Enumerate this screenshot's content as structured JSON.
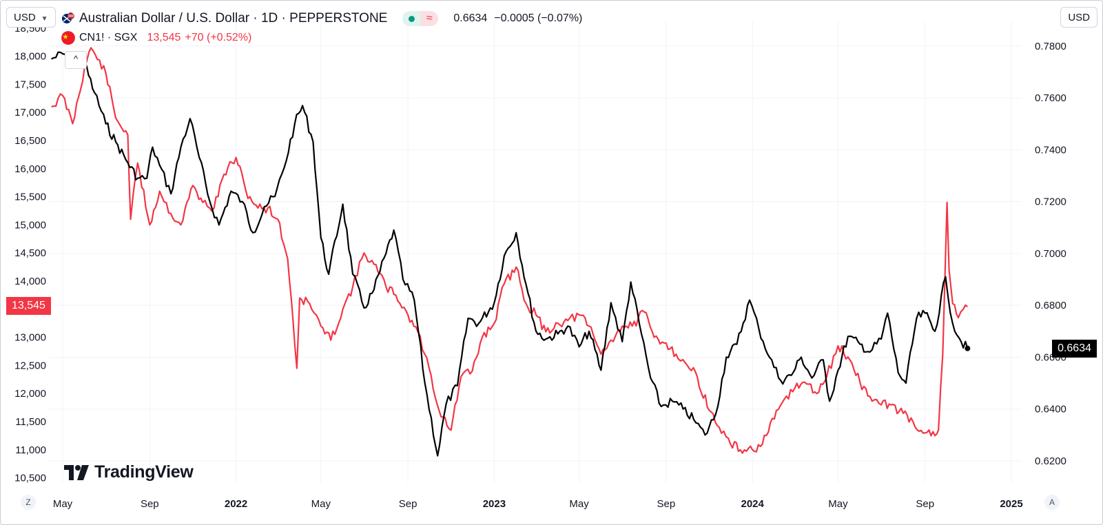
{
  "toolbar": {
    "left_currency": "USD",
    "right_currency": "USD",
    "left_currency_icon": "chevron-down-icon",
    "collapse_icon": "chevron-up-icon"
  },
  "legend": {
    "main": {
      "title": "Australian Dollar / U.S. Dollar · 1D · PEPPERSTONE",
      "value": "0.6634",
      "change": "−0.0005 (−0.07%)",
      "flag_icon": "au-us-flag-icon"
    },
    "compare": {
      "symbol": "CN1! · SGX",
      "value": "13,545",
      "change": "+70 (+0.52%)",
      "flag_icon": "china-flag-icon"
    }
  },
  "price_tags": {
    "left": "13,545",
    "right": "0.6634"
  },
  "logo": {
    "name": "TradingView"
  },
  "corner_buttons": {
    "left": "Z",
    "right": "A"
  },
  "colors": {
    "audusd": "#000000",
    "cn1": "#f23645",
    "grid": "#f0f3fa",
    "text": "#131722"
  },
  "chart_data": {
    "type": "line",
    "title": "Australian Dollar / U.S. Dollar · 1D · PEPPERSTONE",
    "x_ticks": [
      {
        "label": "May",
        "date": "2021-05-01",
        "year": false
      },
      {
        "label": "Sep",
        "date": "2021-09-01",
        "year": false
      },
      {
        "label": "2022",
        "date": "2022-01-01",
        "year": true
      },
      {
        "label": "May",
        "date": "2022-05-01",
        "year": false
      },
      {
        "label": "Sep",
        "date": "2022-09-01",
        "year": false
      },
      {
        "label": "2023",
        "date": "2023-01-01",
        "year": true
      },
      {
        "label": "May",
        "date": "2023-05-01",
        "year": false
      },
      {
        "label": "Sep",
        "date": "2023-09-01",
        "year": false
      },
      {
        "label": "2024",
        "date": "2024-01-01",
        "year": true
      },
      {
        "label": "May",
        "date": "2024-05-01",
        "year": false
      },
      {
        "label": "Sep",
        "date": "2024-09-01",
        "year": false
      },
      {
        "label": "2025",
        "date": "2025-01-01",
        "year": true
      }
    ],
    "right_axis": {
      "ylim": [
        0.6115,
        0.7895
      ],
      "ticks": [
        "0.6200",
        "0.6400",
        "0.6600",
        "0.6800",
        "0.7000",
        "0.7200",
        "0.7400",
        "0.7600",
        "0.7800"
      ]
    },
    "left_axis": {
      "ylim": [
        10410,
        18620
      ],
      "ticks": [
        "10,500",
        "11,000",
        "11,500",
        "12,000",
        "12,500",
        "13,000",
        "13,500",
        "14,000",
        "14,500",
        "15,000",
        "15,500",
        "16,000",
        "16,500",
        "17,000",
        "17,500",
        "18,000",
        "18,500"
      ]
    },
    "series": [
      {
        "name": "Australian Dollar / U.S. Dollar · 1D · PEPPERSTONE",
        "axis": "right",
        "points": [
          [
            "2021-04-15",
            0.775
          ],
          [
            "2021-05-01",
            0.777
          ],
          [
            "2021-05-15",
            0.775
          ],
          [
            "2021-06-01",
            0.773
          ],
          [
            "2021-06-15",
            0.762
          ],
          [
            "2021-07-01",
            0.75
          ],
          [
            "2021-07-15",
            0.743
          ],
          [
            "2021-08-01",
            0.735
          ],
          [
            "2021-08-15",
            0.729
          ],
          [
            "2021-08-28",
            0.729
          ],
          [
            "2021-09-05",
            0.741
          ],
          [
            "2021-09-15",
            0.734
          ],
          [
            "2021-10-01",
            0.723
          ],
          [
            "2021-10-15",
            0.741
          ],
          [
            "2021-10-28",
            0.752
          ],
          [
            "2021-11-10",
            0.737
          ],
          [
            "2021-11-25",
            0.72
          ],
          [
            "2021-12-08",
            0.711
          ],
          [
            "2021-12-25",
            0.724
          ],
          [
            "2022-01-10",
            0.72
          ],
          [
            "2022-01-25",
            0.708
          ],
          [
            "2022-02-10",
            0.718
          ],
          [
            "2022-02-25",
            0.722
          ],
          [
            "2022-03-10",
            0.733
          ],
          [
            "2022-03-25",
            0.75
          ],
          [
            "2022-04-05",
            0.757
          ],
          [
            "2022-04-20",
            0.743
          ],
          [
            "2022-05-01",
            0.706
          ],
          [
            "2022-05-12",
            0.692
          ],
          [
            "2022-06-01",
            0.719
          ],
          [
            "2022-06-15",
            0.692
          ],
          [
            "2022-07-01",
            0.679
          ],
          [
            "2022-07-15",
            0.686
          ],
          [
            "2022-08-01",
            0.7
          ],
          [
            "2022-08-12",
            0.709
          ],
          [
            "2022-08-25",
            0.69
          ],
          [
            "2022-09-10",
            0.682
          ],
          [
            "2022-09-25",
            0.65
          ],
          [
            "2022-10-13",
            0.622
          ],
          [
            "2022-10-25",
            0.642
          ],
          [
            "2022-11-10",
            0.649
          ],
          [
            "2022-11-25",
            0.675
          ],
          [
            "2022-12-10",
            0.673
          ],
          [
            "2023-01-01",
            0.681
          ],
          [
            "2023-01-15",
            0.699
          ],
          [
            "2023-02-01",
            0.708
          ],
          [
            "2023-02-15",
            0.688
          ],
          [
            "2023-03-01",
            0.67
          ],
          [
            "2023-03-15",
            0.667
          ],
          [
            "2023-04-01",
            0.669
          ],
          [
            "2023-04-15",
            0.672
          ],
          [
            "2023-05-01",
            0.664
          ],
          [
            "2023-05-15",
            0.67
          ],
          [
            "2023-06-01",
            0.655
          ],
          [
            "2023-06-15",
            0.681
          ],
          [
            "2023-07-01",
            0.666
          ],
          [
            "2023-07-13",
            0.689
          ],
          [
            "2023-07-25",
            0.673
          ],
          [
            "2023-08-10",
            0.652
          ],
          [
            "2023-08-25",
            0.641
          ],
          [
            "2023-09-10",
            0.643
          ],
          [
            "2023-09-25",
            0.64
          ],
          [
            "2023-10-10",
            0.636
          ],
          [
            "2023-10-26",
            0.63
          ],
          [
            "2023-11-10",
            0.638
          ],
          [
            "2023-11-25",
            0.66
          ],
          [
            "2023-12-10",
            0.665
          ],
          [
            "2023-12-28",
            0.682
          ],
          [
            "2024-01-10",
            0.671
          ],
          [
            "2024-01-25",
            0.66
          ],
          [
            "2024-02-10",
            0.651
          ],
          [
            "2024-02-25",
            0.653
          ],
          [
            "2024-03-10",
            0.66
          ],
          [
            "2024-03-25",
            0.652
          ],
          [
            "2024-04-10",
            0.659
          ],
          [
            "2024-04-19",
            0.643
          ],
          [
            "2024-05-01",
            0.655
          ],
          [
            "2024-05-15",
            0.668
          ],
          [
            "2024-06-01",
            0.665
          ],
          [
            "2024-06-15",
            0.662
          ],
          [
            "2024-07-01",
            0.667
          ],
          [
            "2024-07-10",
            0.677
          ],
          [
            "2024-07-25",
            0.654
          ],
          [
            "2024-08-05",
            0.65
          ],
          [
            "2024-08-20",
            0.675
          ],
          [
            "2024-09-01",
            0.677
          ],
          [
            "2024-09-15",
            0.67
          ],
          [
            "2024-09-30",
            0.691
          ],
          [
            "2024-10-10",
            0.673
          ],
          [
            "2024-10-22",
            0.666
          ],
          [
            "2024-10-31",
            0.6634
          ]
        ]
      },
      {
        "name": "CN1! · SGX",
        "axis": "left",
        "points": [
          [
            "2021-04-15",
            17100
          ],
          [
            "2021-05-01",
            17300
          ],
          [
            "2021-05-15",
            16800
          ],
          [
            "2021-06-01",
            17800
          ],
          [
            "2021-06-10",
            18150
          ],
          [
            "2021-07-01",
            17700
          ],
          [
            "2021-07-15",
            16900
          ],
          [
            "2021-08-01",
            16600
          ],
          [
            "2021-08-05",
            15100
          ],
          [
            "2021-08-15",
            16100
          ],
          [
            "2021-09-01",
            15000
          ],
          [
            "2021-09-15",
            15600
          ],
          [
            "2021-10-01",
            15200
          ],
          [
            "2021-10-15",
            15000
          ],
          [
            "2021-11-01",
            15700
          ],
          [
            "2021-11-15",
            15400
          ],
          [
            "2021-12-01",
            15300
          ],
          [
            "2021-12-15",
            15900
          ],
          [
            "2022-01-01",
            16200
          ],
          [
            "2022-01-15",
            15600
          ],
          [
            "2022-02-01",
            15300
          ],
          [
            "2022-02-15",
            15300
          ],
          [
            "2022-03-01",
            15100
          ],
          [
            "2022-03-15",
            14400
          ],
          [
            "2022-03-20",
            13700
          ],
          [
            "2022-03-28",
            12450
          ],
          [
            "2022-04-01",
            13700
          ],
          [
            "2022-04-15",
            13600
          ],
          [
            "2022-05-01",
            13200
          ],
          [
            "2022-05-15",
            12950
          ],
          [
            "2022-06-01",
            13500
          ],
          [
            "2022-06-15",
            13900
          ],
          [
            "2022-07-01",
            14500
          ],
          [
            "2022-07-15",
            14300
          ],
          [
            "2022-08-01",
            13900
          ],
          [
            "2022-08-15",
            13750
          ],
          [
            "2022-09-01",
            13400
          ],
          [
            "2022-09-15",
            13100
          ],
          [
            "2022-10-01",
            12450
          ],
          [
            "2022-10-15",
            11700
          ],
          [
            "2022-11-01",
            11350
          ],
          [
            "2022-11-15",
            12300
          ],
          [
            "2022-12-01",
            12400
          ],
          [
            "2022-12-15",
            13000
          ],
          [
            "2023-01-01",
            13250
          ],
          [
            "2023-01-15",
            13950
          ],
          [
            "2023-02-01",
            14250
          ],
          [
            "2023-02-15",
            13600
          ],
          [
            "2023-03-01",
            13400
          ],
          [
            "2023-03-15",
            13100
          ],
          [
            "2023-04-01",
            13250
          ],
          [
            "2023-04-15",
            13300
          ],
          [
            "2023-05-01",
            13400
          ],
          [
            "2023-05-15",
            13200
          ],
          [
            "2023-06-01",
            12700
          ],
          [
            "2023-06-15",
            12950
          ],
          [
            "2023-07-01",
            13200
          ],
          [
            "2023-07-15",
            13200
          ],
          [
            "2023-08-01",
            13450
          ],
          [
            "2023-08-15",
            13000
          ],
          [
            "2023-09-01",
            12900
          ],
          [
            "2023-09-15",
            12700
          ],
          [
            "2023-10-01",
            12500
          ],
          [
            "2023-10-15",
            12300
          ],
          [
            "2023-11-01",
            11700
          ],
          [
            "2023-11-15",
            11400
          ],
          [
            "2023-12-01",
            11100
          ],
          [
            "2023-12-15",
            11000
          ],
          [
            "2024-01-01",
            11000
          ],
          [
            "2024-01-15",
            11100
          ],
          [
            "2024-02-01",
            11550
          ],
          [
            "2024-02-15",
            11900
          ],
          [
            "2024-03-01",
            12100
          ],
          [
            "2024-03-15",
            12200
          ],
          [
            "2024-04-01",
            12000
          ],
          [
            "2024-04-15",
            12300
          ],
          [
            "2024-05-01",
            12850
          ],
          [
            "2024-05-15",
            12650
          ],
          [
            "2024-06-01",
            12200
          ],
          [
            "2024-06-15",
            11950
          ],
          [
            "2024-07-01",
            11800
          ],
          [
            "2024-07-15",
            11800
          ],
          [
            "2024-08-01",
            11650
          ],
          [
            "2024-08-15",
            11500
          ],
          [
            "2024-09-01",
            11300
          ],
          [
            "2024-09-15",
            11250
          ],
          [
            "2024-09-20",
            11350
          ],
          [
            "2024-09-26",
            12700
          ],
          [
            "2024-10-02",
            15400
          ],
          [
            "2024-10-05",
            14200
          ],
          [
            "2024-10-10",
            13600
          ],
          [
            "2024-10-18",
            13350
          ],
          [
            "2024-10-25",
            13500
          ],
          [
            "2024-10-31",
            13545
          ]
        ]
      }
    ]
  }
}
